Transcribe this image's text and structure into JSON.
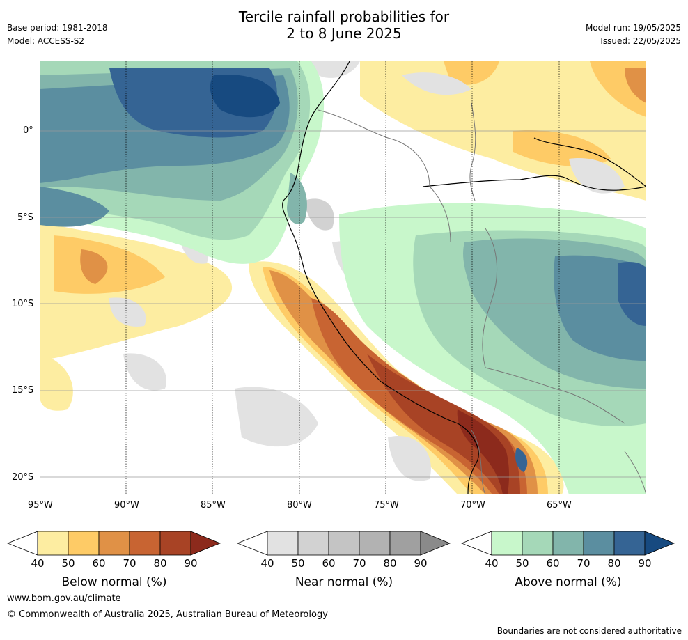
{
  "header": {
    "title_line1": "Tercile rainfall probabilities for",
    "title_line2": "2 to 8 June 2025",
    "base_period": "Base period: 1981-2018",
    "model": "Model: ACCESS-S2",
    "model_run": "Model run: 19/05/2025",
    "issued": "Issued: 22/05/2025"
  },
  "map": {
    "lat_labels": [
      "0°",
      "5°S",
      "10°S",
      "15°S",
      "20°S"
    ],
    "lon_labels": [
      "95°W",
      "90°W",
      "85°W",
      "80°W",
      "75°W",
      "70°W",
      "65°W"
    ]
  },
  "legends": [
    {
      "label": "Below normal (%)",
      "ticks": [
        "40",
        "50",
        "60",
        "70",
        "80",
        "90"
      ],
      "colors": [
        "#fdeda1",
        "#fecb66",
        "#e09146",
        "#c86432",
        "#a84325",
        "#8c2a1c"
      ]
    },
    {
      "label": "Near normal (%)",
      "ticks": [
        "40",
        "50",
        "60",
        "70",
        "80",
        "90"
      ],
      "colors": [
        "#e2e2e2",
        "#d2d2d2",
        "#c4c4c4",
        "#b2b2b2",
        "#a0a0a0",
        "#8a8a8a"
      ]
    },
    {
      "label": "Above normal (%)",
      "ticks": [
        "40",
        "50",
        "60",
        "70",
        "80",
        "90"
      ],
      "colors": [
        "#c8f7cb",
        "#a5d8b8",
        "#82b5ab",
        "#5b8ea0",
        "#356494",
        "#174a80"
      ]
    }
  ],
  "footer": {
    "website": "www.bom.gov.au/climate",
    "copyright": "© Commonwealth of Australia 2025, Australian Bureau of Meteorology",
    "disclaimer": "Boundaries are not considered authoritative"
  }
}
